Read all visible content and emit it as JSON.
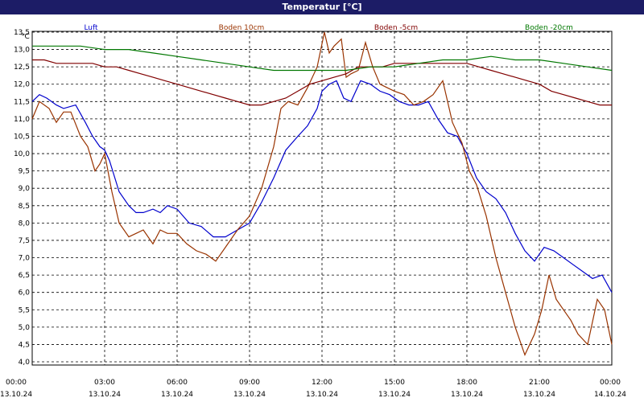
{
  "title": "Temperatur [°C]",
  "chart_data": {
    "type": "line",
    "title": "Temperatur [°C]",
    "ylabel": "°C",
    "ylim": [
      4.0,
      13.5
    ],
    "yticks": [
      "13,5",
      "13,0",
      "12,5",
      "12,0",
      "11,5",
      "11,0",
      "10,5",
      "10,0",
      "9,5",
      "9,0",
      "8,5",
      "8,0",
      "7,5",
      "7,0",
      "6,5",
      "6,0",
      "5,5",
      "5,0",
      "4,5",
      "4,0"
    ],
    "xlim_hours": [
      0,
      24
    ],
    "xticks": [
      {
        "time": "00:00",
        "date": "13.10.24"
      },
      {
        "time": "03:00",
        "date": "13.10.24"
      },
      {
        "time": "06:00",
        "date": "13.10.24"
      },
      {
        "time": "09:00",
        "date": "13.10.24"
      },
      {
        "time": "12:00",
        "date": "13.10.24"
      },
      {
        "time": "15:00",
        "date": "13.10.24"
      },
      {
        "time": "18:00",
        "date": "13.10.24"
      },
      {
        "time": "21:00",
        "date": "13.10.24"
      },
      {
        "time": "00:00",
        "date": "14.10.24"
      }
    ],
    "grid": true,
    "legend_position": "top",
    "series": [
      {
        "name": "Luft",
        "color": "#0000cc",
        "x": [
          0,
          0.3,
          0.6,
          1,
          1.3,
          1.8,
          2.2,
          2.5,
          2.8,
          3,
          3.2,
          3.6,
          4,
          4.3,
          4.6,
          5,
          5.3,
          5.6,
          6,
          6.5,
          7,
          7.5,
          8,
          8.5,
          9,
          9.5,
          10,
          10.5,
          11,
          11.4,
          11.8,
          12,
          12.3,
          12.6,
          12.9,
          13.2,
          13.6,
          14,
          14.4,
          14.8,
          15.2,
          15.6,
          16,
          16.4,
          16.8,
          17.2,
          17.6,
          18,
          18.4,
          18.8,
          19.2,
          19.6,
          20,
          20.4,
          20.8,
          21.2,
          21.6,
          22,
          22.4,
          22.8,
          23.2,
          23.6,
          24
        ],
        "y": [
          11.5,
          11.7,
          11.6,
          11.4,
          11.3,
          11.4,
          10.9,
          10.5,
          10.2,
          10.1,
          9.8,
          8.9,
          8.5,
          8.3,
          8.3,
          8.4,
          8.3,
          8.5,
          8.4,
          8.0,
          7.9,
          7.6,
          7.6,
          7.8,
          8.0,
          8.6,
          9.3,
          10.1,
          10.5,
          10.8,
          11.3,
          11.8,
          12.0,
          12.1,
          11.6,
          11.5,
          12.1,
          12.0,
          11.8,
          11.7,
          11.5,
          11.4,
          11.4,
          11.5,
          11.0,
          10.6,
          10.5,
          10.0,
          9.3,
          8.9,
          8.7,
          8.3,
          7.7,
          7.2,
          6.9,
          7.3,
          7.2,
          7.0,
          6.8,
          6.6,
          6.4,
          6.5,
          6.0
        ]
      },
      {
        "name": "Boden 10cm",
        "color": "#993300",
        "x": [
          0,
          0.3,
          0.7,
          1,
          1.3,
          1.6,
          2,
          2.3,
          2.6,
          2.8,
          3,
          3.3,
          3.6,
          4,
          4.3,
          4.6,
          5,
          5.3,
          5.6,
          6,
          6.4,
          6.8,
          7.2,
          7.6,
          8,
          8.5,
          9,
          9.5,
          10,
          10.3,
          10.6,
          11,
          11.4,
          11.8,
          12.1,
          12.3,
          12.5,
          12.8,
          13,
          13.2,
          13.5,
          13.8,
          14.1,
          14.4,
          14.7,
          15,
          15.4,
          15.8,
          16.2,
          16.6,
          17,
          17.4,
          17.8,
          18.1,
          18.4,
          18.8,
          19.2,
          19.6,
          20,
          20.4,
          20.8,
          21.1,
          21.4,
          21.7,
          22,
          22.3,
          22.6,
          23,
          23.4,
          23.7,
          24
        ],
        "y": [
          11.0,
          11.5,
          11.3,
          10.9,
          11.2,
          11.2,
          10.5,
          10.2,
          9.5,
          9.7,
          10.0,
          8.9,
          8.0,
          7.6,
          7.7,
          7.8,
          7.4,
          7.8,
          7.7,
          7.7,
          7.4,
          7.2,
          7.1,
          6.9,
          7.3,
          7.8,
          8.2,
          9.0,
          10.2,
          11.3,
          11.5,
          11.4,
          11.9,
          12.5,
          13.5,
          12.9,
          13.1,
          13.3,
          12.2,
          12.3,
          12.4,
          13.2,
          12.5,
          12.0,
          11.9,
          11.8,
          11.7,
          11.4,
          11.5,
          11.7,
          12.1,
          10.9,
          10.3,
          9.5,
          9.1,
          8.2,
          7.0,
          6.0,
          5.0,
          4.2,
          4.8,
          5.5,
          6.5,
          5.8,
          5.5,
          5.2,
          4.8,
          4.5,
          5.8,
          5.5,
          4.5
        ]
      },
      {
        "name": "Boden -5cm",
        "color": "#800000",
        "x": [
          0,
          0.5,
          1,
          1.5,
          2,
          2.5,
          3,
          3.5,
          4,
          4.5,
          5,
          5.5,
          6,
          6.5,
          7,
          7.5,
          8,
          8.5,
          9,
          9.5,
          10,
          10.5,
          11,
          11.5,
          12,
          12.5,
          13,
          13.5,
          14,
          14.5,
          15,
          15.5,
          16,
          16.5,
          17,
          17.5,
          18,
          18.5,
          19,
          19.5,
          20,
          20.5,
          21,
          21.5,
          22,
          22.5,
          23,
          23.5,
          24
        ],
        "y": [
          12.7,
          12.7,
          12.6,
          12.6,
          12.6,
          12.6,
          12.5,
          12.5,
          12.4,
          12.3,
          12.2,
          12.1,
          12.0,
          11.9,
          11.8,
          11.7,
          11.6,
          11.5,
          11.4,
          11.4,
          11.5,
          11.6,
          11.8,
          12.0,
          12.1,
          12.2,
          12.3,
          12.5,
          12.5,
          12.5,
          12.6,
          12.6,
          12.6,
          12.6,
          12.6,
          12.6,
          12.6,
          12.5,
          12.4,
          12.3,
          12.2,
          12.1,
          12.0,
          11.8,
          11.7,
          11.6,
          11.5,
          11.4,
          11.4
        ]
      },
      {
        "name": "Boden -20cm",
        "color": "#007700",
        "x": [
          0,
          1,
          2,
          3,
          4,
          5,
          6,
          7,
          8,
          9,
          10,
          11,
          12,
          13,
          14,
          15,
          16,
          17,
          18,
          19,
          20,
          21,
          22,
          23,
          24
        ],
        "y": [
          13.1,
          13.1,
          13.1,
          13.0,
          13.0,
          12.9,
          12.8,
          12.7,
          12.6,
          12.5,
          12.4,
          12.4,
          12.4,
          12.4,
          12.5,
          12.5,
          12.6,
          12.7,
          12.7,
          12.8,
          12.7,
          12.7,
          12.6,
          12.5,
          12.4
        ]
      }
    ]
  }
}
